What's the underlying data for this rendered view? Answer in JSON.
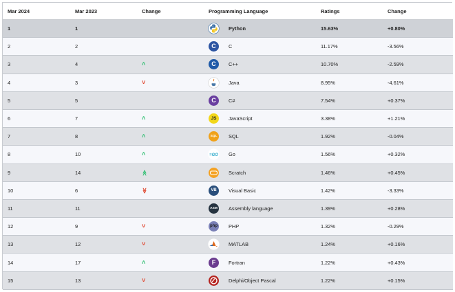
{
  "table": {
    "headers": [
      "Mar 2024",
      "Mar 2023",
      "Change",
      "Programming Language",
      "Ratings",
      "Change"
    ],
    "rows": [
      {
        "rank_2024": "1",
        "rank_2023": "1",
        "trend": "",
        "icon": "python-icon",
        "language": "Python",
        "rating": "15.63%",
        "change": "+0.80%"
      },
      {
        "rank_2024": "2",
        "rank_2023": "2",
        "trend": "",
        "icon": "c-icon",
        "language": "C",
        "rating": "11.17%",
        "change": "-3.56%"
      },
      {
        "rank_2024": "3",
        "rank_2023": "4",
        "trend": "up",
        "icon": "cpp-icon",
        "language": "C++",
        "rating": "10.70%",
        "change": "-2.59%"
      },
      {
        "rank_2024": "4",
        "rank_2023": "3",
        "trend": "down",
        "icon": "java-icon",
        "language": "Java",
        "rating": "8.95%",
        "change": "-4.61%"
      },
      {
        "rank_2024": "5",
        "rank_2023": "5",
        "trend": "",
        "icon": "csharp-icon",
        "language": "C#",
        "rating": "7.54%",
        "change": "+0.37%"
      },
      {
        "rank_2024": "6",
        "rank_2023": "7",
        "trend": "up",
        "icon": "javascript-icon",
        "language": "JavaScript",
        "rating": "3.38%",
        "change": "+1.21%"
      },
      {
        "rank_2024": "7",
        "rank_2023": "8",
        "trend": "up",
        "icon": "sql-icon",
        "language": "SQL",
        "rating": "1.92%",
        "change": "-0.04%"
      },
      {
        "rank_2024": "8",
        "rank_2023": "10",
        "trend": "up",
        "icon": "go-icon",
        "language": "Go",
        "rating": "1.56%",
        "change": "+0.32%"
      },
      {
        "rank_2024": "9",
        "rank_2023": "14",
        "trend": "double-up",
        "icon": "scratch-icon",
        "language": "Scratch",
        "rating": "1.46%",
        "change": "+0.45%"
      },
      {
        "rank_2024": "10",
        "rank_2023": "6",
        "trend": "double-down",
        "icon": "visual-basic-icon",
        "language": "Visual Basic",
        "rating": "1.42%",
        "change": "-3.33%"
      },
      {
        "rank_2024": "11",
        "rank_2023": "11",
        "trend": "",
        "icon": "assembly-icon",
        "language": "Assembly language",
        "rating": "1.39%",
        "change": "+0.28%"
      },
      {
        "rank_2024": "12",
        "rank_2023": "9",
        "trend": "down",
        "icon": "php-icon",
        "language": "PHP",
        "rating": "1.32%",
        "change": "-0.29%"
      },
      {
        "rank_2024": "13",
        "rank_2023": "12",
        "trend": "down",
        "icon": "matlab-icon",
        "language": "MATLAB",
        "rating": "1.24%",
        "change": "+0.16%"
      },
      {
        "rank_2024": "14",
        "rank_2023": "17",
        "trend": "up",
        "icon": "fortran-icon",
        "language": "Fortran",
        "rating": "1.22%",
        "change": "+0.43%"
      },
      {
        "rank_2024": "15",
        "rank_2023": "13",
        "trend": "down",
        "icon": "delphi-icon",
        "language": "Delphi/Object Pascal",
        "rating": "1.22%",
        "change": "+0.15%"
      }
    ]
  },
  "logo_text": {
    "c-icon": "C",
    "cpp-icon": "C",
    "csharp-icon": "C",
    "javascript-icon": "JS",
    "sql-icon": "SQL",
    "go-icon": "GO",
    "visual-basic-icon": "VB",
    "assembly-icon": "ASM",
    "php-icon": "php",
    "fortran-icon": "F"
  },
  "colors": {
    "trend_up": "#2fbf71",
    "trend_down": "#e0442c",
    "header_bg": "#ffffff",
    "row_odd": "#dfe1e5",
    "row_even": "#f6f7fb",
    "row_top": "#cfd2d7"
  }
}
